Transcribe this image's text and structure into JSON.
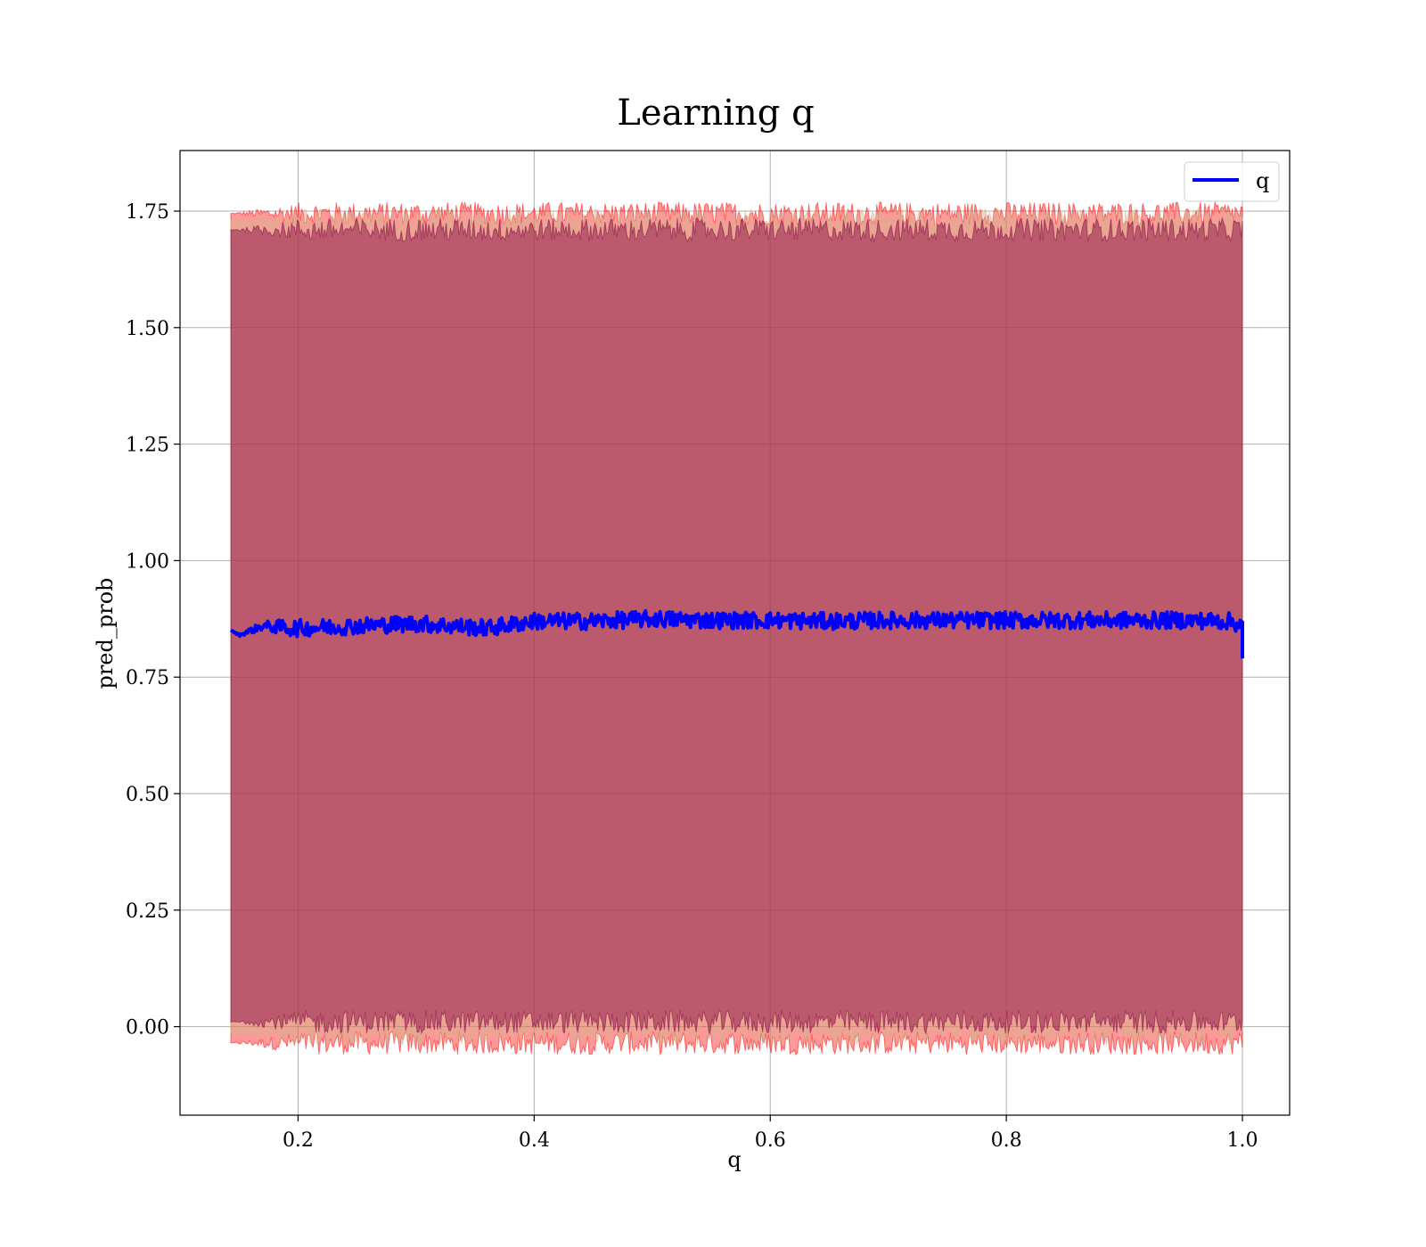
{
  "chart_data": {
    "type": "line",
    "title": "Learning q",
    "xlabel": "q",
    "ylabel": "pred_prob",
    "xlim": [
      0.1,
      1.04
    ],
    "ylim": [
      -0.19,
      1.88
    ],
    "xticks": [
      "0.2",
      "0.4",
      "0.6",
      "0.8",
      "1.0"
    ],
    "yticks": [
      "0.00",
      "0.25",
      "0.50",
      "0.75",
      "1.00",
      "1.25",
      "1.50",
      "1.75"
    ],
    "grid": true,
    "legend_position": "top-right",
    "x_range": [
      0.143,
      1.0
    ],
    "series": [
      {
        "name": "q",
        "color": "#0000ff",
        "x": [
          0.143,
          0.15,
          0.16,
          0.17,
          0.18,
          0.2,
          0.25,
          0.3,
          0.33,
          0.36,
          0.4,
          0.45,
          0.5,
          0.55,
          0.6,
          0.65,
          0.7,
          0.75,
          0.8,
          0.85,
          0.9,
          0.95,
          0.99,
          1.0,
          1.0
        ],
        "y": [
          0.851,
          0.84,
          0.85,
          0.86,
          0.858,
          0.855,
          0.86,
          0.865,
          0.86,
          0.855,
          0.87,
          0.87,
          0.875,
          0.872,
          0.872,
          0.87,
          0.872,
          0.872,
          0.872,
          0.872,
          0.872,
          0.872,
          0.87,
          0.86,
          0.79
        ]
      }
    ],
    "bands": [
      {
        "color": "#ff0000",
        "lower": -0.035,
        "upper": 1.745
      },
      {
        "color": "#d2b48c",
        "lower": -0.015,
        "upper": 1.73
      },
      {
        "color": "#800040",
        "lower": 0.01,
        "upper": 1.71
      }
    ]
  }
}
